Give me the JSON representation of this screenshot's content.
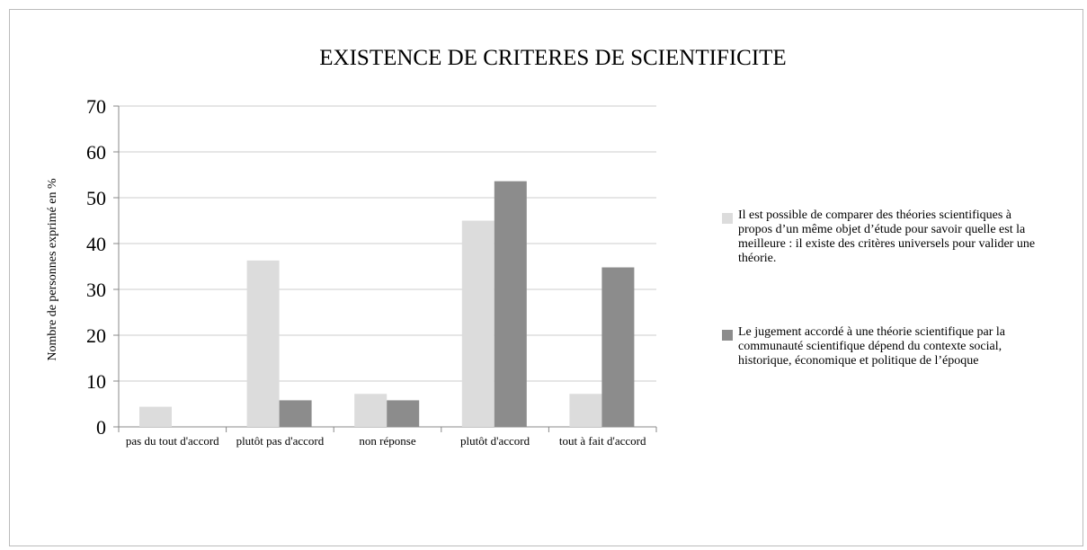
{
  "chart_data": {
    "type": "bar",
    "title": "EXISTENCE DE CRITERES DE SCIENTIFICITE",
    "y_label": "Nombre de personnes exprimé en %",
    "categories": [
      "pas du tout d'accord",
      "plutôt pas d'accord",
      "non réponse",
      "plutôt d'accord",
      "tout à fait d'accord"
    ],
    "series": [
      {
        "name": "Il est possible de comparer des théories scientifiques à propos d’un même objet d’étude pour savoir quelle est la meilleure : il existe des critères universels pour valider une théorie.",
        "color": "#dcdcdc",
        "values": [
          4.4,
          36.3,
          7.2,
          45,
          7.2
        ]
      },
      {
        "name": "Le jugement accordé à une théorie scientifique par la communauté scientifique dépend du contexte social, historique, économique et politique de l’époque",
        "color": "#8c8c8c",
        "values": [
          0,
          5.8,
          5.8,
          53.6,
          34.8
        ]
      }
    ],
    "ylim": [
      0,
      70
    ],
    "yticks": [
      0,
      10,
      20,
      30,
      40,
      50,
      60,
      70
    ],
    "grid": true
  }
}
